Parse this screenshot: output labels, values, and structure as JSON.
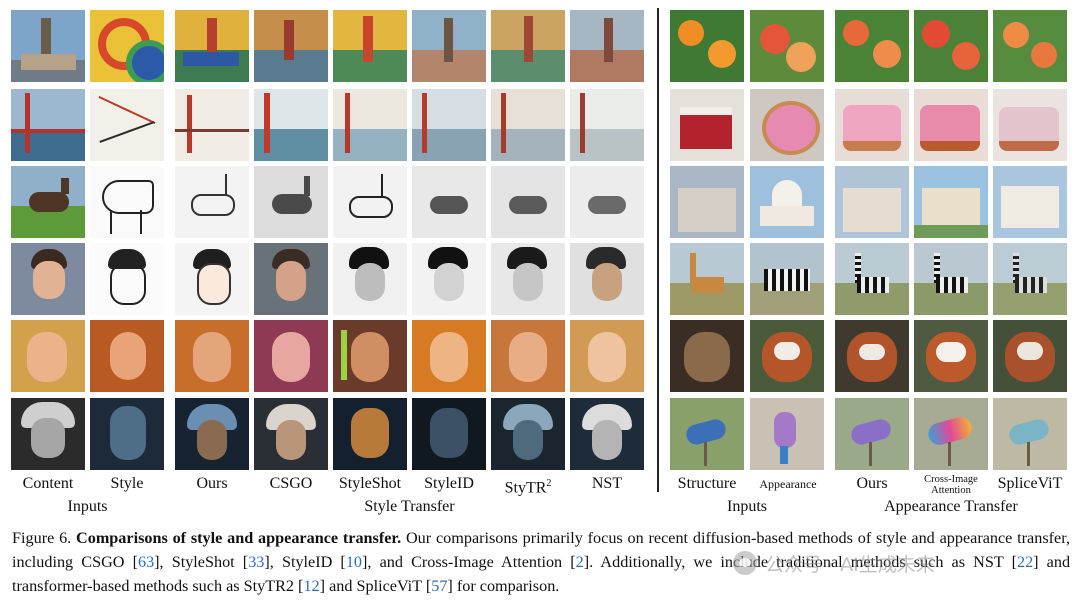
{
  "figure": {
    "left_labels": [
      "Content",
      "Style",
      "Ours",
      "CSGO",
      "StyleShot",
      "StyleID",
      "StyTR",
      "NST"
    ],
    "left_sup": "2",
    "right_labels": [
      "Structure",
      "Appearance",
      "Ours",
      "Cross-Image",
      "Attention",
      "SpliceViT"
    ],
    "groups": [
      "Inputs",
      "Style Transfer",
      "Inputs",
      "Appearance Transfer"
    ]
  },
  "caption": {
    "figure_no": "Figure 6.",
    "title": "Comparisons of style and appearance transfer.",
    "t1": " Our comparisons primarily focus on recent diffusion-based methods of style and appearance transfer, including CSGO [",
    "r1": "63",
    "t2": "], StyleShot [",
    "r2": "33",
    "t3": "], StyleID [",
    "r3": "10",
    "t4": "], and Cross-Image Attention [",
    "r4": "2",
    "t5": "]. Additionally, we include traditional methods such as NST [",
    "r5": "22",
    "t6": "] and transformer-based methods such as StyTR2 [",
    "r6": "12",
    "t7": "] and SpliceViT [",
    "r7": "57",
    "t8": "] for comparison."
  },
  "watermark": {
    "text": "公众号 · AI生成未来"
  },
  "colors": {
    "reference_link": "#2f6fb5",
    "divider": "#222222"
  }
}
